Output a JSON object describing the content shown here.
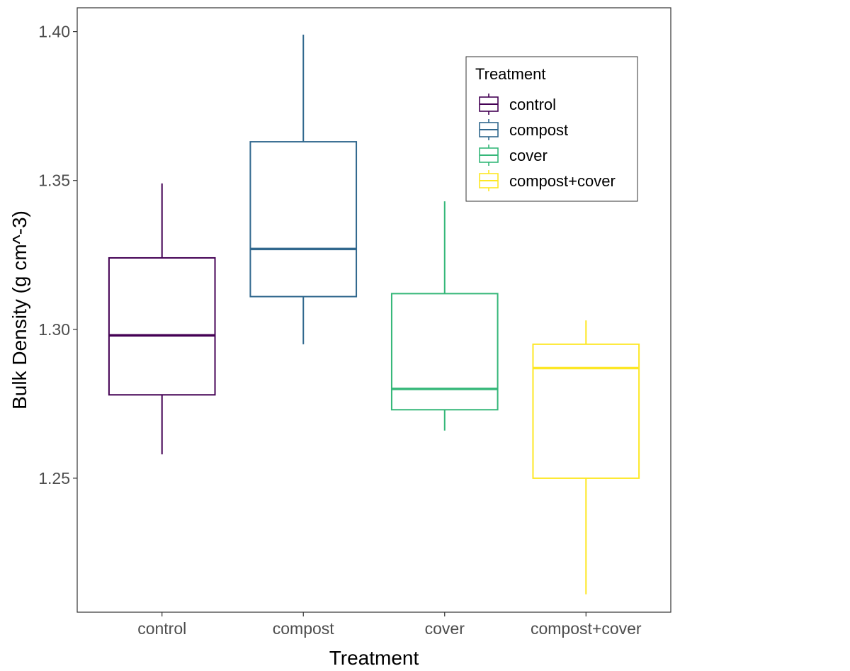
{
  "chart_data": {
    "type": "boxplot",
    "title": "",
    "xlabel": "Treatment",
    "ylabel": "Bulk Density (g cm^-3)",
    "ylim": [
      1.205,
      1.408
    ],
    "yticks": [
      "1.25",
      "1.30",
      "1.35",
      "1.40"
    ],
    "categories": [
      "control",
      "compost",
      "cover",
      "compost+cover"
    ],
    "boxes": [
      {
        "name": "control",
        "color": "#440154",
        "min": 1.258,
        "q1": 1.278,
        "median": 1.298,
        "q3": 1.324,
        "max": 1.349
      },
      {
        "name": "compost",
        "color": "#31688E",
        "min": 1.295,
        "q1": 1.311,
        "median": 1.327,
        "q3": 1.363,
        "max": 1.399
      },
      {
        "name": "cover",
        "color": "#35B779",
        "min": 1.266,
        "q1": 1.273,
        "median": 1.28,
        "q3": 1.312,
        "max": 1.343
      },
      {
        "name": "compost+cover",
        "color": "#FDE725",
        "min": 1.211,
        "q1": 1.25,
        "median": 1.287,
        "q3": 1.295,
        "max": 1.303
      }
    ],
    "legend": {
      "title": "Treatment",
      "position": "top-right",
      "entries": [
        "control",
        "compost",
        "cover",
        "compost+cover"
      ]
    },
    "grid": false
  }
}
